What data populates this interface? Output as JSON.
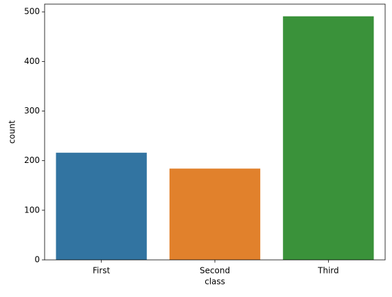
{
  "chart_data": {
    "type": "bar",
    "x_label": "class",
    "y_label": "count",
    "categories": [
      "First",
      "Second",
      "Third"
    ],
    "values": [
      216,
      184,
      491
    ],
    "colors": [
      "#3274a1",
      "#e1812c",
      "#3a923a"
    ],
    "ylim": [
      0,
      515.55
    ],
    "yticks": [
      0,
      100,
      200,
      300,
      400,
      500
    ],
    "grid": false
  }
}
